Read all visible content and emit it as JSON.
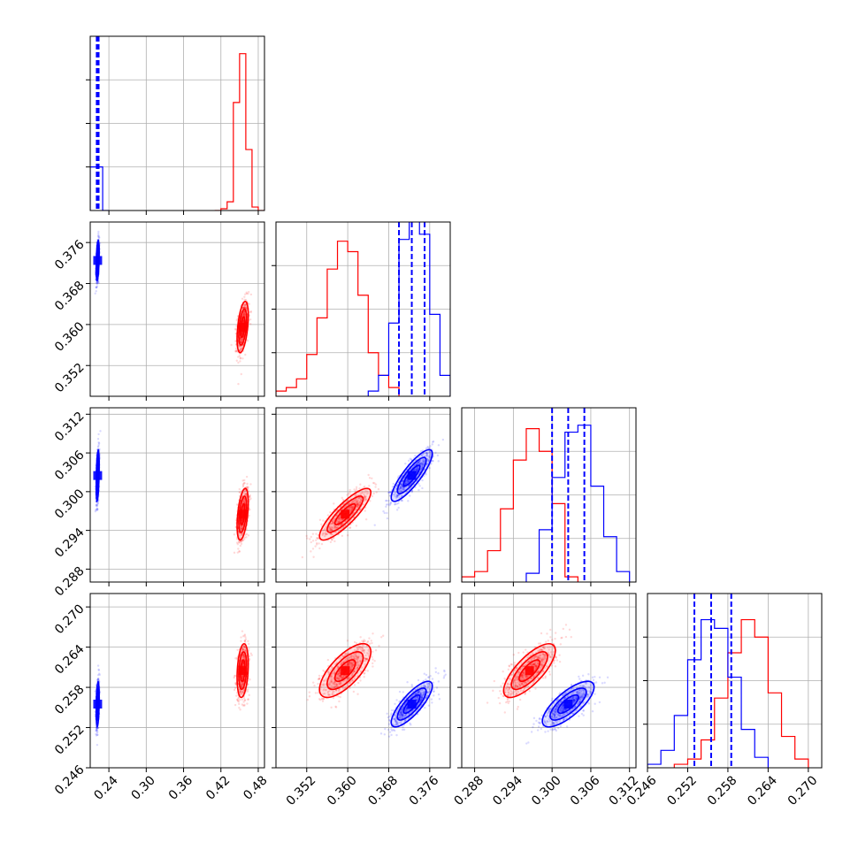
{
  "chart_data": {
    "type": "corner",
    "parameters": [
      {
        "ticks": [
          0.24,
          0.3,
          0.36,
          0.42,
          0.48
        ],
        "tick_labels": [
          "0.24",
          "0.30",
          "0.36",
          "0.42",
          "0.48"
        ],
        "range": [
          0.21,
          0.49
        ]
      },
      {
        "ticks": [
          0.352,
          0.36,
          0.368,
          0.376
        ],
        "tick_labels": [
          "0.352",
          "0.360",
          "0.368",
          "0.376"
        ],
        "range": [
          0.346,
          0.38
        ]
      },
      {
        "ticks": [
          0.288,
          0.294,
          0.3,
          0.306,
          0.312
        ],
        "tick_labels": [
          "0.288",
          "0.294",
          "0.300",
          "0.306",
          "0.312"
        ],
        "range": [
          0.286,
          0.313
        ]
      },
      {
        "ticks": [
          0.246,
          0.252,
          0.258,
          0.264,
          0.27
        ],
        "tick_labels": [
          "0.246",
          "0.252",
          "0.258",
          "0.264",
          "0.270"
        ],
        "range": [
          0.246,
          0.272
        ]
      }
    ],
    "series": [
      {
        "color": "#ff0000",
        "means": [
          0.455,
          0.3595,
          0.2965,
          0.2605
        ],
        "sds": [
          0.0045,
          0.0025,
          0.002,
          0.002
        ],
        "correlations": [
          [
            1,
            0.45,
            0.45,
            0.25
          ],
          [
            0.45,
            1,
            0.85,
            0.7
          ],
          [
            0.45,
            0.85,
            1,
            0.75
          ],
          [
            0.25,
            0.7,
            0.75,
            1
          ]
        ],
        "hist_bins": [
          {
            "edges": [
              0.41,
              0.42,
              0.43,
              0.44,
              0.45,
              0.46,
              0.47,
              0.48,
              0.49
            ],
            "heights": [
              0,
              0.01,
              0.05,
              0.62,
              0.9,
              0.35,
              0.02,
              0
            ]
          },
          {
            "edges": [
              0.346,
              0.348,
              0.35,
              0.352,
              0.354,
              0.356,
              0.358,
              0.36,
              0.362,
              0.364,
              0.366,
              0.368,
              0.37
            ],
            "heights": [
              0.03,
              0.05,
              0.1,
              0.24,
              0.45,
              0.73,
              0.89,
              0.83,
              0.58,
              0.25,
              0.12,
              0.05
            ]
          },
          {
            "edges": [
              0.286,
              0.288,
              0.29,
              0.292,
              0.294,
              0.296,
              0.298,
              0.3,
              0.302,
              0.304
            ],
            "heights": [
              0.03,
              0.06,
              0.18,
              0.42,
              0.7,
              0.88,
              0.75,
              0.45,
              0.03
            ]
          },
          {
            "edges": [
              0.25,
              0.252,
              0.254,
              0.256,
              0.258,
              0.26,
              0.262,
              0.264,
              0.266,
              0.268,
              0.27
            ],
            "heights": [
              0.02,
              0.05,
              0.16,
              0.4,
              0.66,
              0.85,
              0.75,
              0.43,
              0.18,
              0.05
            ]
          }
        ]
      },
      {
        "color": "#0000ff",
        "means": [
          0.222,
          0.3725,
          0.3025,
          0.2555
        ],
        "sds": [
          0.0012,
          0.002,
          0.002,
          0.0017
        ],
        "correlations": [
          [
            1,
            0.4,
            0.4,
            0.3
          ],
          [
            0.4,
            1,
            0.85,
            0.8
          ],
          [
            0.4,
            0.85,
            1,
            0.75
          ],
          [
            0.3,
            0.8,
            0.75,
            1
          ]
        ],
        "quantiles": [
          [
            0.2205,
            0.222,
            0.2235
          ],
          [
            0.37,
            0.3725,
            0.375
          ],
          [
            0.3,
            0.3025,
            0.305
          ],
          [
            0.253,
            0.2555,
            0.2585
          ]
        ],
        "hist_bins": [
          {
            "edges": [
              0.21,
              0.22,
              0.23,
              0.24
            ],
            "heights": [
              0.25,
              0.25,
              0
            ]
          },
          {
            "edges": [
              0.364,
              0.366,
              0.368,
              0.37,
              0.372,
              0.374,
              0.376,
              0.378,
              0.38
            ],
            "heights": [
              0.03,
              0.12,
              0.42,
              0.9,
              1.02,
              0.93,
              0.47,
              0.12
            ]
          },
          {
            "edges": [
              0.296,
              0.298,
              0.3,
              0.302,
              0.304,
              0.306,
              0.308,
              0.31,
              0.312
            ],
            "heights": [
              0.05,
              0.3,
              0.6,
              0.86,
              0.9,
              0.55,
              0.26,
              0.06
            ]
          },
          {
            "edges": [
              0.246,
              0.248,
              0.25,
              0.252,
              0.254,
              0.256,
              0.258,
              0.26,
              0.262,
              0.264
            ],
            "heights": [
              0.02,
              0.1,
              0.3,
              0.62,
              0.85,
              0.8,
              0.52,
              0.22,
              0.06
            ]
          }
        ]
      }
    ],
    "grid": true,
    "tick_label_rotation": 45
  }
}
